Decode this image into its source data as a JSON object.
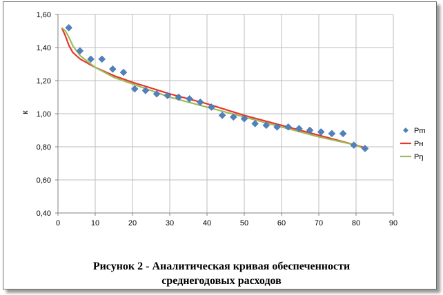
{
  "caption": {
    "line1": "Рисунок 2 - Аналитическая кривая обеспеченности",
    "line2": "среднегодовых расходов"
  },
  "chart_data": {
    "type": "scatter",
    "title": "",
    "xlabel": "",
    "ylabel": "к",
    "xlim": [
      0,
      90
    ],
    "ylim": [
      0.4,
      1.6
    ],
    "xticks": [
      "0",
      "10",
      "20",
      "30",
      "40",
      "50",
      "60",
      "70",
      "80",
      "90"
    ],
    "yticks": [
      "0,40",
      "0,60",
      "0,80",
      "1,00",
      "1,20",
      "1,40",
      "1,60"
    ],
    "grid": {
      "horizontal": true,
      "vertical": true
    },
    "legend_position": "right",
    "series": [
      {
        "name": "Pm",
        "kind": "markers",
        "color": "#4f81bd",
        "x": [
          2.9,
          5.9,
          8.8,
          11.8,
          14.7,
          17.6,
          20.6,
          23.5,
          26.5,
          29.4,
          32.4,
          35.3,
          38.2,
          41.2,
          44.1,
          47.1,
          50.0,
          52.9,
          55.9,
          58.8,
          61.8,
          64.7,
          67.6,
          70.6,
          73.5,
          76.5,
          79.4,
          82.4
        ],
        "y": [
          1.52,
          1.38,
          1.33,
          1.33,
          1.27,
          1.25,
          1.15,
          1.14,
          1.12,
          1.11,
          1.1,
          1.09,
          1.07,
          1.04,
          0.99,
          0.98,
          0.97,
          0.94,
          0.93,
          0.92,
          0.92,
          0.91,
          0.9,
          0.89,
          0.88,
          0.88,
          0.81,
          0.79
        ]
      },
      {
        "name": "Pн",
        "kind": "line",
        "color": "#e8342c",
        "x": [
          1,
          2,
          3,
          4,
          6,
          10,
          15,
          20,
          30,
          40,
          50,
          60,
          70,
          80,
          83
        ],
        "y": [
          1.52,
          1.47,
          1.41,
          1.37,
          1.33,
          1.28,
          1.23,
          1.19,
          1.12,
          1.06,
          0.99,
          0.93,
          0.87,
          0.81,
          0.79
        ]
      },
      {
        "name": "Pŋ",
        "kind": "line",
        "color": "#9bbb59",
        "x": [
          1,
          2,
          3,
          4,
          6,
          10,
          15,
          20,
          30,
          40,
          50,
          60,
          70,
          80,
          83
        ],
        "y": [
          1.52,
          1.5,
          1.46,
          1.41,
          1.35,
          1.28,
          1.22,
          1.18,
          1.1,
          1.04,
          0.98,
          0.92,
          0.86,
          0.81,
          0.78
        ]
      }
    ]
  }
}
